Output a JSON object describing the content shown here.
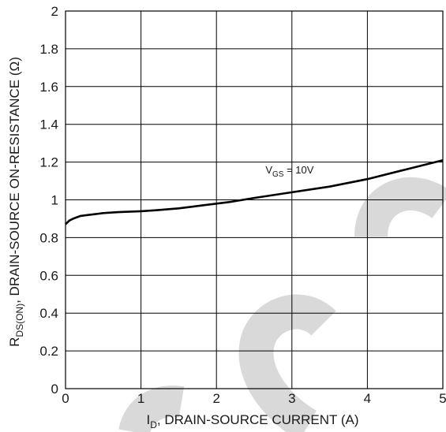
{
  "chart_data": {
    "type": "line",
    "title": "",
    "xlabel": {
      "main": "I",
      "sub": "D",
      "rest": ", DRAIN-SOURCE CURRENT (A)"
    },
    "ylabel": {
      "main": "R",
      "sub": "DS(ON)",
      "rest": ", DRAIN-SOURCE ON-RESISTANCE (Ω)"
    },
    "xlim": [
      0,
      5
    ],
    "ylim": [
      0,
      2
    ],
    "x_ticks": [
      "0",
      "1",
      "2",
      "3",
      "4",
      "5"
    ],
    "y_ticks": [
      "0",
      "0.2",
      "0.4",
      "0.6",
      "0.8",
      "1",
      "1.2",
      "1.4",
      "1.6",
      "1.8",
      "2"
    ],
    "grid": true,
    "series": [
      {
        "name": "",
        "x": [
          0.0,
          0.05,
          0.1,
          0.2,
          0.3,
          0.5,
          0.7,
          1.0,
          1.2,
          1.5,
          1.7,
          2.0,
          2.2,
          2.5,
          3.0,
          3.5,
          4.0,
          4.5,
          5.0
        ],
        "y": [
          0.87,
          0.89,
          0.9,
          0.915,
          0.92,
          0.93,
          0.935,
          0.94,
          0.945,
          0.955,
          0.965,
          0.98,
          0.99,
          1.01,
          1.04,
          1.07,
          1.11,
          1.16,
          1.21
        ]
      }
    ],
    "annotation": {
      "main": "V",
      "sub": "GS",
      "rest": " = 10V",
      "x": 2.65,
      "y": 1.14
    },
    "watermark_color": "#d9d9d9",
    "line_color": "#000000",
    "grid_color": "#000000"
  }
}
